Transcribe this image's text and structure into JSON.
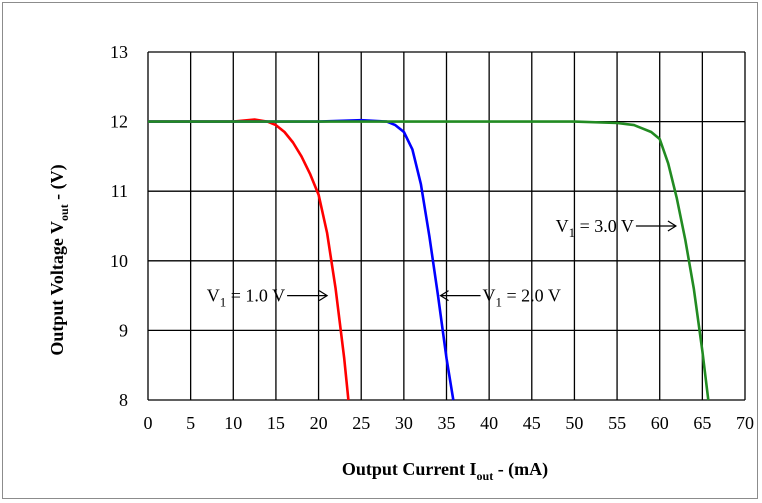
{
  "chart_data": {
    "type": "line",
    "xlabel": {
      "main": "Output Current I",
      "sub": "out",
      "tail": " - (mA)"
    },
    "ylabel": {
      "main": "Output Voltage V",
      "sub": "out",
      "tail": " - (V)"
    },
    "xlim": [
      0,
      70
    ],
    "ylim": [
      8,
      13
    ],
    "xticks": [
      0,
      5,
      10,
      15,
      20,
      25,
      30,
      35,
      40,
      45,
      50,
      55,
      60,
      65,
      70
    ],
    "yticks": [
      8,
      9,
      10,
      11,
      12,
      13
    ],
    "grid": true,
    "series": [
      {
        "name": "V1 = 1.0 V",
        "color": "#ff0000",
        "x": [
          0,
          5,
          10,
          12.5,
          14,
          15,
          16,
          17,
          18,
          19,
          20,
          21,
          22,
          23,
          23.5
        ],
        "y": [
          12,
          12,
          12,
          12.03,
          12,
          11.95,
          11.85,
          11.7,
          11.5,
          11.25,
          10.95,
          10.4,
          9.6,
          8.6,
          8
        ]
      },
      {
        "name": "V1 = 2.0 V",
        "color": "#0000ff",
        "x": [
          0,
          10,
          20,
          25,
          28,
          29,
          30,
          31,
          32,
          33,
          34,
          35,
          35.8
        ],
        "y": [
          12,
          12,
          12,
          12.02,
          12,
          11.95,
          11.85,
          11.6,
          11.1,
          10.35,
          9.5,
          8.6,
          8
        ]
      },
      {
        "name": "V1 = 3.0 V",
        "color": "#228b22",
        "x": [
          0,
          10,
          20,
          30,
          40,
          50,
          55,
          57,
          58,
          59,
          60,
          61,
          62,
          63,
          64,
          65,
          65.7
        ],
        "y": [
          12,
          12,
          12,
          12,
          12,
          12,
          11.98,
          11.95,
          11.9,
          11.85,
          11.75,
          11.4,
          10.9,
          10.3,
          9.6,
          8.7,
          8
        ]
      }
    ],
    "annotations": [
      {
        "series": 0,
        "label_v": "V",
        "label_sub": "1",
        "label_rest": " = 1.0 V",
        "arrow_to": [
          21.0,
          9.5
        ],
        "side": "left"
      },
      {
        "series": 1,
        "label_v": "V",
        "label_sub": "1",
        "label_rest": " = 2.0 V",
        "arrow_to": [
          34.3,
          9.5
        ],
        "side": "right"
      },
      {
        "series": 2,
        "label_v": "V",
        "label_sub": "1",
        "label_rest": " = 3.0 V",
        "arrow_to": [
          61.9,
          10.5
        ],
        "side": "left"
      }
    ]
  }
}
